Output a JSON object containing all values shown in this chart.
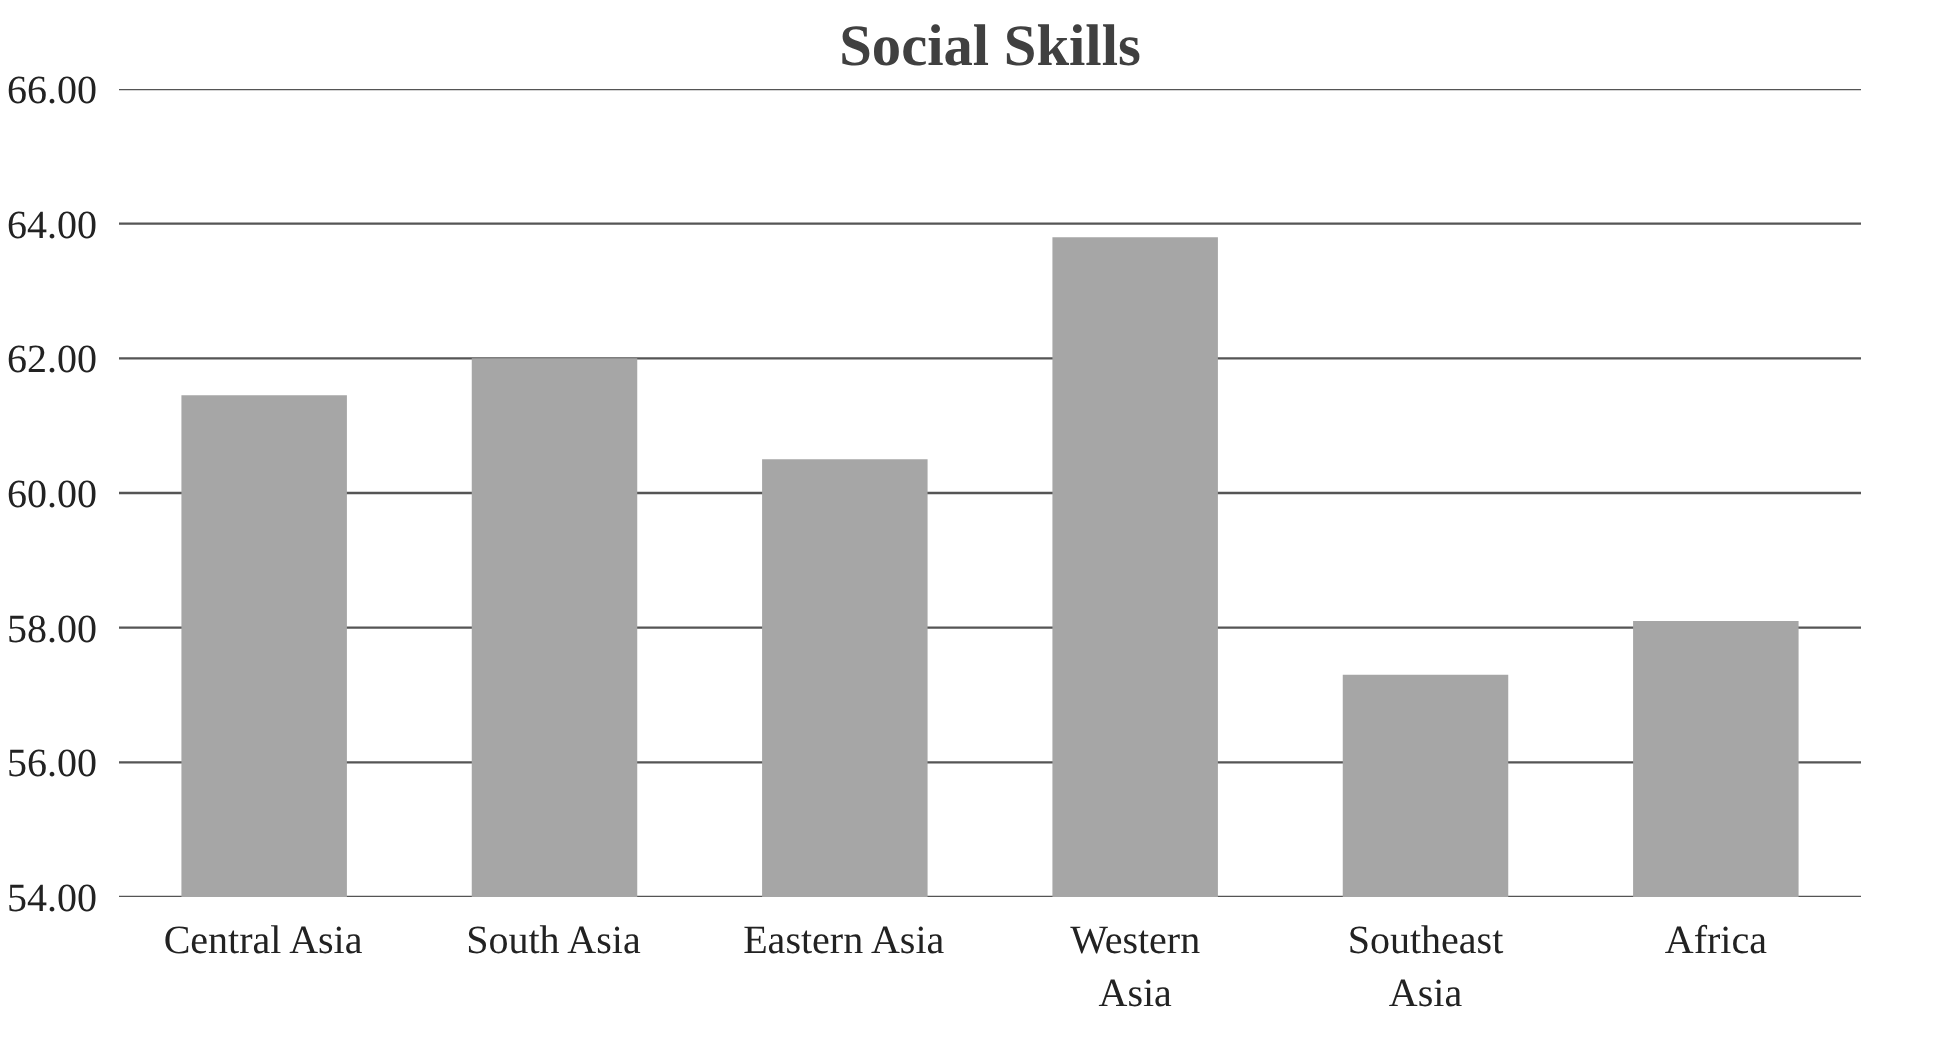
{
  "chart_data": {
    "type": "bar",
    "title": "Social Skills",
    "categories": [
      "Central Asia",
      "South Asia",
      "Eastern Asia",
      "Western\nAsia",
      "Southeast\nAsia",
      "Africa"
    ],
    "values": [
      61.45,
      62.0,
      60.5,
      63.8,
      57.3,
      58.1
    ],
    "color": "#a6a6a6",
    "ylim": [
      54,
      66
    ],
    "yticks": [
      {
        "value": 54,
        "label": "54.00"
      },
      {
        "value": 56,
        "label": "56.00"
      },
      {
        "value": 58,
        "label": "58.00"
      },
      {
        "value": 60,
        "label": "60.00"
      },
      {
        "value": 62,
        "label": "62.00"
      },
      {
        "value": 64,
        "label": "64.00"
      },
      {
        "value": 66,
        "label": "66.00"
      }
    ],
    "grid": "y"
  }
}
